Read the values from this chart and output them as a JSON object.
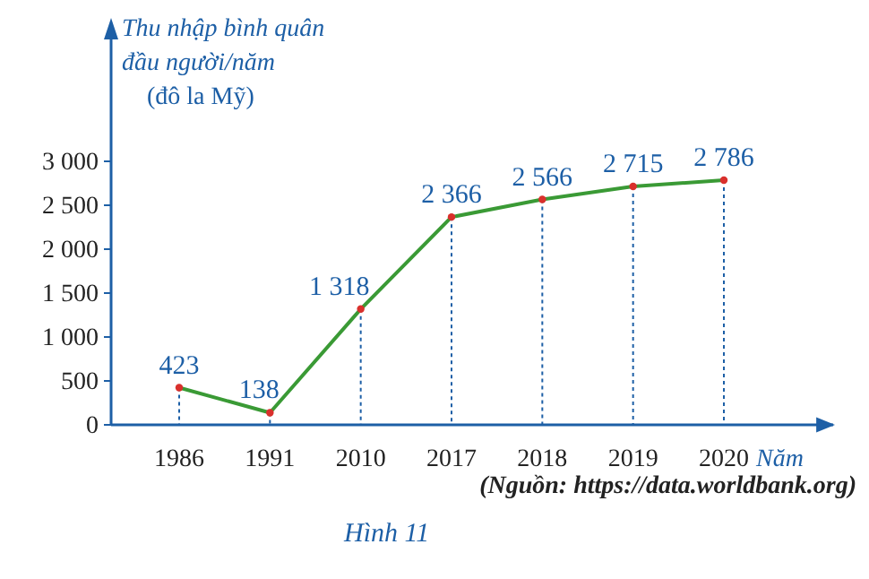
{
  "chart_data": {
    "type": "line",
    "ylabel": "Thu nhập bình quân\nđầu người/năm\n(đô la Mỹ)",
    "xlabel": "Năm",
    "categories": [
      "1986",
      "1991",
      "2010",
      "2017",
      "2018",
      "2019",
      "2020"
    ],
    "series": [
      {
        "color": "#3a9a35",
        "values": [
          423,
          138,
          1318,
          2366,
          2566,
          2715,
          2786
        ],
        "value_labels": [
          "423",
          "138",
          "1 318",
          "2 366",
          "2 566",
          "2 715",
          "2 786"
        ]
      }
    ],
    "ylim": [
      0,
      3000
    ],
    "yticks": [
      0,
      {
        "value": 500,
        "label": "500"
      },
      {
        "value": 1000,
        "label": "1 000"
      },
      {
        "value": 1500,
        "label": "1 500"
      },
      {
        "value": 2000,
        "label": "2 000"
      },
      {
        "value": 2500,
        "label": "2 500"
      },
      {
        "value": 3000,
        "label": "3 000"
      }
    ],
    "marker": "circle",
    "grid": "x",
    "annotations": [
      "(Nguồn: https://data.worldbank.org)",
      "Hình 11"
    ]
  }
}
